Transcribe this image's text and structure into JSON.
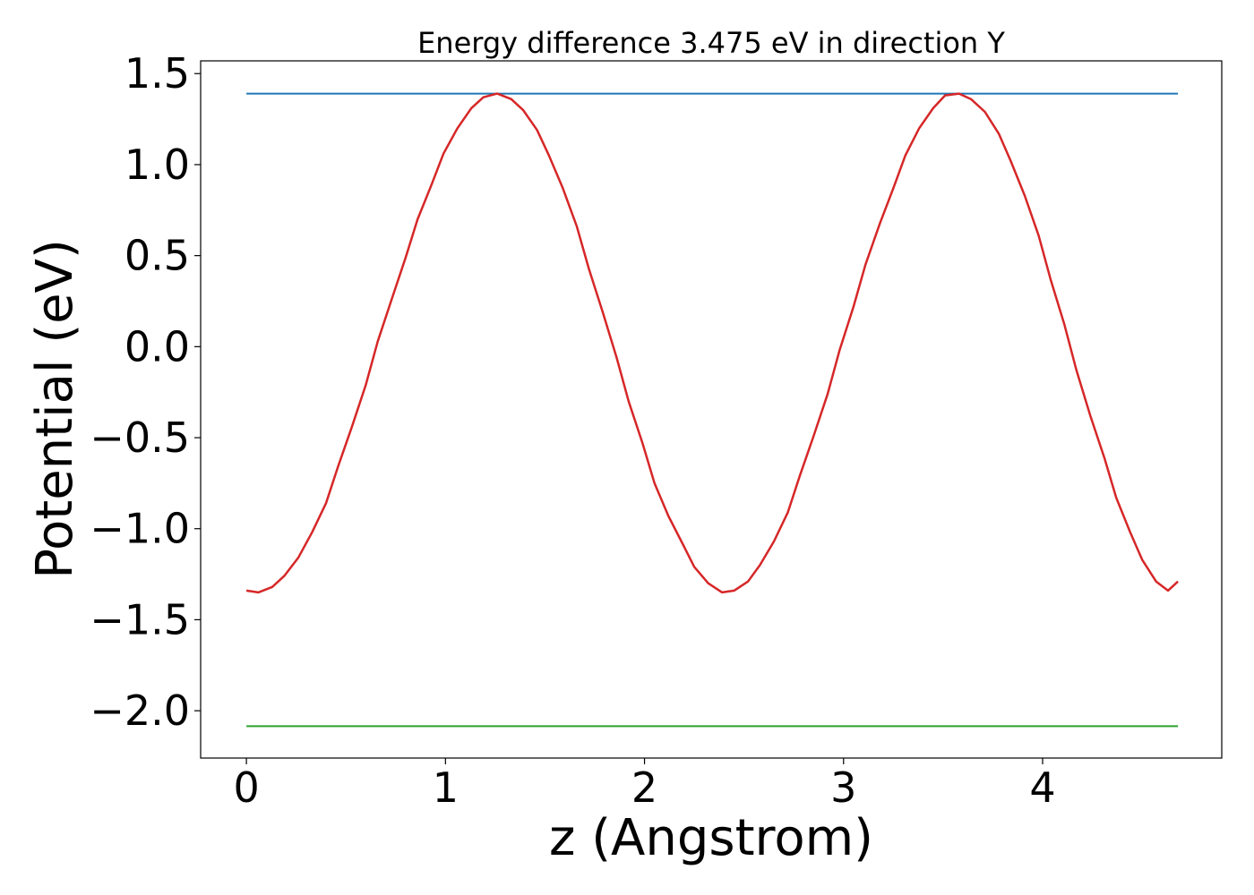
{
  "chart_data": {
    "type": "line",
    "title": "Energy difference 3.475 eV in direction Y",
    "xlabel": "z (Angstrom)",
    "ylabel": "Potential (eV)",
    "xlim": [
      -0.23,
      4.9
    ],
    "ylim": [
      -2.26,
      1.57
    ],
    "x_ticks": [
      0,
      1,
      2,
      3,
      4
    ],
    "x_tick_labels": [
      "0",
      "1",
      "2",
      "3",
      "4"
    ],
    "y_ticks": [
      1.5,
      1.0,
      0.5,
      0.0,
      -0.5,
      -1.0,
      -1.5,
      -2.0
    ],
    "y_tick_labels": [
      "1.5",
      "1.0",
      "0.5",
      "0.0",
      "−0.5",
      "−1.0",
      "−1.5",
      "−2.0"
    ],
    "grid": false,
    "series": [
      {
        "color": "#1f77b4",
        "x": [
          0.0,
          4.68
        ],
        "y": [
          1.39,
          1.39
        ]
      },
      {
        "color": "#d62728",
        "x": [
          0.0,
          0.06,
          0.13,
          0.19,
          0.26,
          0.33,
          0.4,
          0.46,
          0.53,
          0.6,
          0.66,
          0.73,
          0.8,
          0.86,
          0.93,
          0.99,
          1.06,
          1.13,
          1.19,
          1.26,
          1.33,
          1.39,
          1.46,
          1.52,
          1.59,
          1.66,
          1.72,
          1.79,
          1.86,
          1.92,
          1.99,
          2.05,
          2.12,
          2.19,
          2.25,
          2.32,
          2.39,
          2.45,
          2.52,
          2.58,
          2.65,
          2.72,
          2.78,
          2.85,
          2.92,
          2.98,
          3.05,
          3.11,
          3.18,
          3.25,
          3.31,
          3.38,
          3.45,
          3.51,
          3.58,
          3.64,
          3.71,
          3.78,
          3.84,
          3.91,
          3.98,
          4.04,
          4.11,
          4.17,
          4.24,
          4.31,
          4.37,
          4.44,
          4.5,
          4.57,
          4.63,
          4.68
        ],
        "y": [
          -1.34,
          -1.35,
          -1.32,
          -1.26,
          -1.16,
          -1.02,
          -0.86,
          -0.66,
          -0.44,
          -0.21,
          0.03,
          0.26,
          0.49,
          0.7,
          0.89,
          1.06,
          1.2,
          1.31,
          1.37,
          1.39,
          1.36,
          1.3,
          1.19,
          1.05,
          0.87,
          0.66,
          0.43,
          0.19,
          -0.06,
          -0.3,
          -0.53,
          -0.75,
          -0.93,
          -1.08,
          -1.21,
          -1.3,
          -1.35,
          -1.34,
          -1.29,
          -1.2,
          -1.07,
          -0.91,
          -0.71,
          -0.49,
          -0.26,
          -0.02,
          0.22,
          0.45,
          0.67,
          0.87,
          1.05,
          1.2,
          1.31,
          1.38,
          1.39,
          1.36,
          1.29,
          1.17,
          1.02,
          0.83,
          0.61,
          0.37,
          0.12,
          -0.13,
          -0.38,
          -0.61,
          -0.83,
          -1.02,
          -1.17,
          -1.29,
          -1.34,
          -1.29
        ]
      },
      {
        "color": "#2ca02c",
        "x": [
          0.0,
          4.68
        ],
        "y": [
          -2.085,
          -2.085
        ]
      }
    ]
  }
}
